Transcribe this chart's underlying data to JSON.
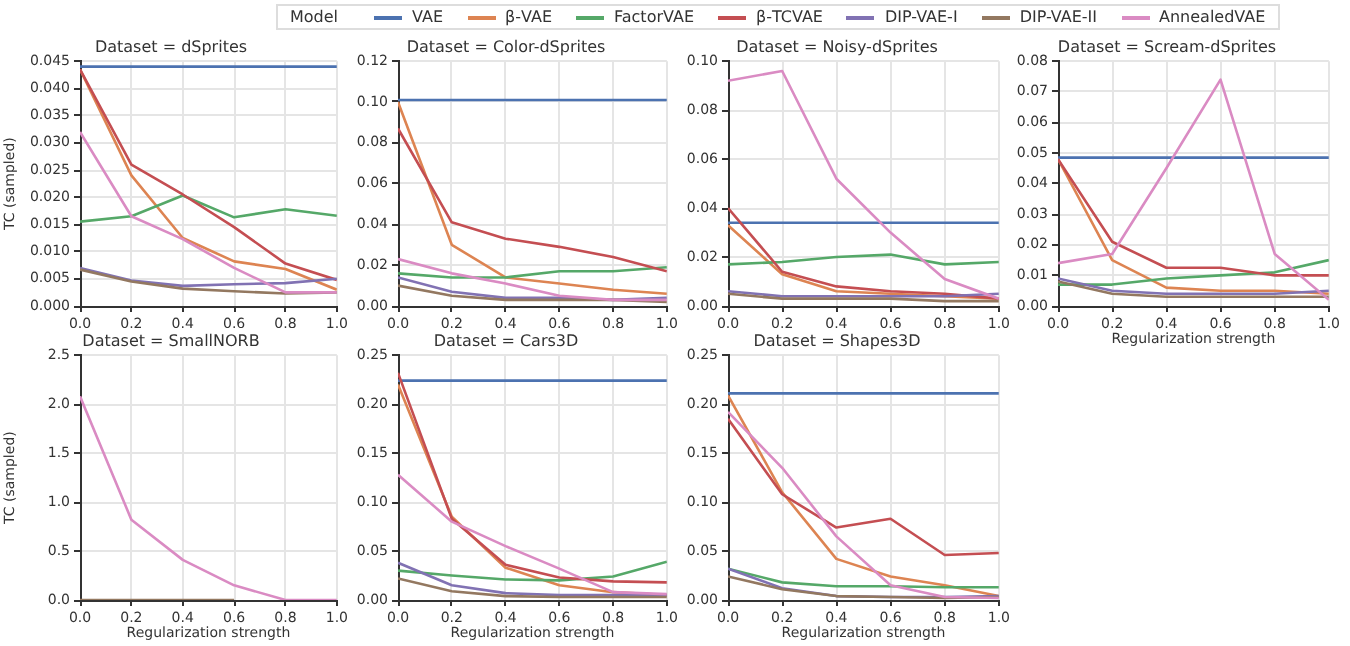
{
  "chart_data": [
    {
      "type": "line",
      "title": "Dataset = dSprites",
      "ylabel": "TC (sampled)",
      "legend": "top",
      "legend_title": "Model",
      "grid": true,
      "x": [
        0,
        0.2,
        0.4,
        0.6,
        0.8,
        1.0
      ],
      "xlim": [
        0,
        1
      ],
      "xticks": [
        {
          "value": 0,
          "label": "0.0"
        },
        {
          "value": 0.2,
          "label": "0.2"
        },
        {
          "value": 0.4,
          "label": "0.4"
        },
        {
          "value": 0.6,
          "label": "0.6"
        },
        {
          "value": 0.8,
          "label": "0.8"
        },
        {
          "value": 1,
          "label": "1.0"
        }
      ],
      "ylim": [
        0,
        0.045
      ],
      "yticks": [
        {
          "value": 0,
          "label": "0.000"
        },
        {
          "value": 0.005,
          "label": "0.005"
        },
        {
          "value": 0.01,
          "label": "0.010"
        },
        {
          "value": 0.015,
          "label": "0.015"
        },
        {
          "value": 0.02,
          "label": "0.020"
        },
        {
          "value": 0.025,
          "label": "0.025"
        },
        {
          "value": 0.03,
          "label": "0.030"
        },
        {
          "value": 0.035,
          "label": "0.035"
        },
        {
          "value": 0.04,
          "label": "0.040"
        },
        {
          "value": 0.045,
          "label": "0.045"
        }
      ],
      "series": [
        {
          "name": "VAE",
          "color": "#4c72b0",
          "values": [
            0.044,
            0.044,
            0.044,
            0.044,
            0.044,
            0.044
          ]
        },
        {
          "name": "β-VAE",
          "color": "#dd8452",
          "values": [
            0.0435,
            0.024,
            0.0125,
            0.0082,
            0.0068,
            0.003
          ]
        },
        {
          "name": "FactorVAE",
          "color": "#55a868",
          "values": [
            0.0155,
            0.0165,
            0.0203,
            0.0163,
            0.0178,
            0.0166
          ]
        },
        {
          "name": "β-TCVAE",
          "color": "#c44e52",
          "values": [
            0.0435,
            0.026,
            0.0205,
            0.0145,
            0.0078,
            0.0048
          ]
        },
        {
          "name": "DIP-VAE-I",
          "color": "#8172b3",
          "values": [
            0.007,
            0.0047,
            0.0037,
            0.004,
            0.0042,
            0.005
          ]
        },
        {
          "name": "DIP-VAE-II",
          "color": "#937860",
          "values": [
            0.0067,
            0.0045,
            0.0032,
            0.0027,
            0.0023,
            0.0025
          ]
        },
        {
          "name": "AnnealedVAE",
          "color": "#da8bc3",
          "values": [
            0.032,
            0.0165,
            0.0123,
            0.007,
            0.0025,
            0.0025
          ]
        }
      ]
    },
    {
      "type": "line",
      "title": "Dataset = Color-dSprites",
      "grid": true,
      "x": [
        0,
        0.2,
        0.4,
        0.6,
        0.8,
        1.0
      ],
      "xlim": [
        0,
        1
      ],
      "xticks": [
        {
          "value": 0,
          "label": "0.0"
        },
        {
          "value": 0.2,
          "label": "0.2"
        },
        {
          "value": 0.4,
          "label": "0.4"
        },
        {
          "value": 0.6,
          "label": "0.6"
        },
        {
          "value": 0.8,
          "label": "0.8"
        },
        {
          "value": 1,
          "label": "1.0"
        }
      ],
      "ylim": [
        0,
        0.12
      ],
      "yticks": [
        {
          "value": 0,
          "label": "0.00"
        },
        {
          "value": 0.02,
          "label": "0.02"
        },
        {
          "value": 0.04,
          "label": "0.04"
        },
        {
          "value": 0.06,
          "label": "0.06"
        },
        {
          "value": 0.08,
          "label": "0.08"
        },
        {
          "value": 0.1,
          "label": "0.10"
        },
        {
          "value": 0.12,
          "label": "0.12"
        }
      ],
      "series": [
        {
          "color": "#4c72b0",
          "values": [
            0.101,
            0.101,
            0.101,
            0.101,
            0.101,
            0.101
          ]
        },
        {
          "color": "#dd8452",
          "values": [
            0.1,
            0.03,
            0.014,
            0.011,
            0.008,
            0.006
          ]
        },
        {
          "color": "#55a868",
          "values": [
            0.016,
            0.014,
            0.014,
            0.017,
            0.017,
            0.019
          ]
        },
        {
          "color": "#c44e52",
          "values": [
            0.087,
            0.041,
            0.033,
            0.029,
            0.024,
            0.017
          ]
        },
        {
          "color": "#8172b3",
          "values": [
            0.014,
            0.007,
            0.004,
            0.004,
            0.003,
            0.004
          ]
        },
        {
          "color": "#937860",
          "values": [
            0.01,
            0.005,
            0.003,
            0.003,
            0.003,
            0.002
          ]
        },
        {
          "color": "#da8bc3",
          "values": [
            0.023,
            0.016,
            0.011,
            0.005,
            0.003,
            0.003
          ]
        }
      ]
    },
    {
      "type": "line",
      "title": "Dataset = Noisy-dSprites",
      "grid": true,
      "x": [
        0,
        0.2,
        0.4,
        0.6,
        0.8,
        1.0
      ],
      "xlim": [
        0,
        1
      ],
      "xticks": [
        {
          "value": 0,
          "label": "0.0"
        },
        {
          "value": 0.2,
          "label": "0.2"
        },
        {
          "value": 0.4,
          "label": "0.4"
        },
        {
          "value": 0.6,
          "label": "0.6"
        },
        {
          "value": 0.8,
          "label": "0.8"
        },
        {
          "value": 1,
          "label": "1.0"
        }
      ],
      "ylim": [
        0,
        0.1
      ],
      "yticks": [
        {
          "value": 0,
          "label": "0.00"
        },
        {
          "value": 0.02,
          "label": "0.02"
        },
        {
          "value": 0.04,
          "label": "0.04"
        },
        {
          "value": 0.06,
          "label": "0.06"
        },
        {
          "value": 0.08,
          "label": "0.08"
        },
        {
          "value": 0.1,
          "label": "0.10"
        }
      ],
      "series": [
        {
          "color": "#4c72b0",
          "values": [
            0.034,
            0.034,
            0.034,
            0.034,
            0.034,
            0.034
          ]
        },
        {
          "color": "#dd8452",
          "values": [
            0.033,
            0.013,
            0.006,
            0.005,
            0.004,
            0.003
          ]
        },
        {
          "color": "#55a868",
          "values": [
            0.017,
            0.018,
            0.02,
            0.021,
            0.017,
            0.018
          ]
        },
        {
          "color": "#c44e52",
          "values": [
            0.04,
            0.014,
            0.008,
            0.006,
            0.005,
            0.003
          ]
        },
        {
          "color": "#8172b3",
          "values": [
            0.006,
            0.004,
            0.004,
            0.004,
            0.004,
            0.005
          ]
        },
        {
          "color": "#937860",
          "values": [
            0.005,
            0.003,
            0.003,
            0.003,
            0.002,
            0.002
          ]
        },
        {
          "color": "#da8bc3",
          "values": [
            0.092,
            0.096,
            0.052,
            0.03,
            0.011,
            0.003
          ]
        }
      ]
    },
    {
      "type": "line",
      "title": "Dataset = Scream-dSprites",
      "xlabel": "Regularization strength",
      "grid": true,
      "x": [
        0,
        0.2,
        0.4,
        0.6,
        0.8,
        1.0
      ],
      "xlim": [
        0,
        1
      ],
      "xticks": [
        {
          "value": 0,
          "label": "0.0"
        },
        {
          "value": 0.2,
          "label": "0.2"
        },
        {
          "value": 0.4,
          "label": "0.4"
        },
        {
          "value": 0.6,
          "label": "0.6"
        },
        {
          "value": 0.8,
          "label": "0.8"
        },
        {
          "value": 1,
          "label": "1.0"
        }
      ],
      "ylim": [
        0,
        0.08
      ],
      "yticks": [
        {
          "value": 0,
          "label": "0.00"
        },
        {
          "value": 0.01,
          "label": "0.01"
        },
        {
          "value": 0.02,
          "label": "0.02"
        },
        {
          "value": 0.03,
          "label": "0.03"
        },
        {
          "value": 0.04,
          "label": "0.04"
        },
        {
          "value": 0.05,
          "label": "0.05"
        },
        {
          "value": 0.06,
          "label": "0.06"
        },
        {
          "value": 0.07,
          "label": "0.07"
        },
        {
          "value": 0.08,
          "label": "0.08"
        }
      ],
      "series": [
        {
          "color": "#4c72b0",
          "values": [
            0.0485,
            0.0485,
            0.0485,
            0.0485,
            0.0485,
            0.0485
          ]
        },
        {
          "color": "#dd8452",
          "values": [
            0.048,
            0.015,
            0.006,
            0.005,
            0.005,
            0.004
          ]
        },
        {
          "color": "#55a868",
          "values": [
            0.007,
            0.007,
            0.009,
            0.01,
            0.011,
            0.015
          ]
        },
        {
          "color": "#c44e52",
          "values": [
            0.048,
            0.021,
            0.0125,
            0.0125,
            0.01,
            0.01
          ]
        },
        {
          "color": "#8172b3",
          "values": [
            0.009,
            0.005,
            0.004,
            0.004,
            0.004,
            0.005
          ]
        },
        {
          "color": "#937860",
          "values": [
            0.008,
            0.004,
            0.003,
            0.003,
            0.003,
            0.003
          ]
        },
        {
          "color": "#da8bc3",
          "values": [
            0.014,
            0.017,
            0.045,
            0.074,
            0.017,
            0.002
          ]
        }
      ]
    },
    {
      "type": "line",
      "title": "Dataset = SmallNORB",
      "xlabel": "Regularization strength",
      "ylabel": "TC (sampled)",
      "grid": true,
      "x": [
        0,
        0.2,
        0.4,
        0.6,
        0.8,
        1.0
      ],
      "xlim": [
        0,
        1
      ],
      "xticks": [
        {
          "value": 0,
          "label": "0.0"
        },
        {
          "value": 0.2,
          "label": "0.2"
        },
        {
          "value": 0.4,
          "label": "0.4"
        },
        {
          "value": 0.6,
          "label": "0.6"
        },
        {
          "value": 0.8,
          "label": "0.8"
        },
        {
          "value": 1,
          "label": "1.0"
        }
      ],
      "ylim": [
        0,
        2.5
      ],
      "yticks": [
        {
          "value": 0,
          "label": "0.0"
        },
        {
          "value": 0.5,
          "label": "0.5"
        },
        {
          "value": 1,
          "label": "1.0"
        },
        {
          "value": 1.5,
          "label": "1.5"
        },
        {
          "value": 2,
          "label": "2.0"
        },
        {
          "value": 2.5,
          "label": "2.5"
        }
      ],
      "series": [
        {
          "color": "#937860",
          "values": [
            0,
            0,
            0,
            0,
            null,
            null
          ]
        },
        {
          "color": "#da8bc3",
          "values": [
            2.08,
            0.82,
            0.41,
            0.15,
            0,
            0
          ]
        }
      ]
    },
    {
      "type": "line",
      "title": "Dataset = Cars3D",
      "xlabel": "Regularization strength",
      "grid": true,
      "x": [
        0,
        0.2,
        0.4,
        0.6,
        0.8,
        1.0
      ],
      "xlim": [
        0,
        1
      ],
      "xticks": [
        {
          "value": 0,
          "label": "0.0"
        },
        {
          "value": 0.2,
          "label": "0.2"
        },
        {
          "value": 0.4,
          "label": "0.4"
        },
        {
          "value": 0.6,
          "label": "0.6"
        },
        {
          "value": 0.8,
          "label": "0.8"
        },
        {
          "value": 1,
          "label": "1.0"
        }
      ],
      "ylim": [
        0,
        0.25
      ],
      "yticks": [
        {
          "value": 0,
          "label": "0.00"
        },
        {
          "value": 0.05,
          "label": "0.05"
        },
        {
          "value": 0.1,
          "label": "0.10"
        },
        {
          "value": 0.15,
          "label": "0.15"
        },
        {
          "value": 0.2,
          "label": "0.20"
        },
        {
          "value": 0.25,
          "label": "0.25"
        }
      ],
      "series": [
        {
          "color": "#4c72b0",
          "values": [
            0.224,
            0.224,
            0.224,
            0.224,
            0.224,
            0.224
          ]
        },
        {
          "color": "#dd8452",
          "values": [
            0.22,
            0.085,
            0.033,
            0.015,
            0.008,
            0.005
          ]
        },
        {
          "color": "#55a868",
          "values": [
            0.03,
            0.025,
            0.021,
            0.02,
            0.024,
            0.039
          ]
        },
        {
          "color": "#c44e52",
          "values": [
            0.232,
            0.083,
            0.036,
            0.023,
            0.019,
            0.018
          ]
        },
        {
          "color": "#8172b3",
          "values": [
            0.038,
            0.015,
            0.007,
            0.005,
            0.005,
            0.005
          ]
        },
        {
          "color": "#937860",
          "values": [
            0.022,
            0.009,
            0.004,
            0.003,
            0.003,
            0.003
          ]
        },
        {
          "color": "#da8bc3",
          "values": [
            0.128,
            0.08,
            0.055,
            0.032,
            0.008,
            0.006
          ]
        }
      ]
    },
    {
      "type": "line",
      "title": "Dataset = Shapes3D",
      "xlabel": "Regularization strength",
      "grid": true,
      "x": [
        0,
        0.2,
        0.4,
        0.6,
        0.8,
        1.0
      ],
      "xlim": [
        0,
        1
      ],
      "xticks": [
        {
          "value": 0,
          "label": "0.0"
        },
        {
          "value": 0.2,
          "label": "0.2"
        },
        {
          "value": 0.4,
          "label": "0.4"
        },
        {
          "value": 0.6,
          "label": "0.6"
        },
        {
          "value": 0.8,
          "label": "0.8"
        },
        {
          "value": 1,
          "label": "1.0"
        }
      ],
      "ylim": [
        0,
        0.25
      ],
      "yticks": [
        {
          "value": 0,
          "label": "0.00"
        },
        {
          "value": 0.05,
          "label": "0.05"
        },
        {
          "value": 0.1,
          "label": "0.10"
        },
        {
          "value": 0.15,
          "label": "0.15"
        },
        {
          "value": 0.2,
          "label": "0.20"
        },
        {
          "value": 0.25,
          "label": "0.25"
        }
      ],
      "series": [
        {
          "color": "#4c72b0",
          "values": [
            0.211,
            0.211,
            0.211,
            0.211,
            0.211,
            0.211
          ]
        },
        {
          "color": "#dd8452",
          "values": [
            0.209,
            0.11,
            0.042,
            0.024,
            0.015,
            0.004
          ]
        },
        {
          "color": "#55a868",
          "values": [
            0.032,
            0.018,
            0.014,
            0.014,
            0.013,
            0.013
          ]
        },
        {
          "color": "#c44e52",
          "values": [
            0.185,
            0.108,
            0.074,
            0.083,
            0.046,
            0.048
          ]
        },
        {
          "color": "#8172b3",
          "values": [
            0.032,
            0.012,
            0.004,
            0.003,
            0.003,
            0.004
          ]
        },
        {
          "color": "#937860",
          "values": [
            0.024,
            0.011,
            0.004,
            0.003,
            0.002,
            0.003
          ]
        },
        {
          "color": "#da8bc3",
          "values": [
            0.192,
            0.135,
            0.065,
            0.015,
            0.003,
            0.002
          ]
        }
      ]
    }
  ]
}
